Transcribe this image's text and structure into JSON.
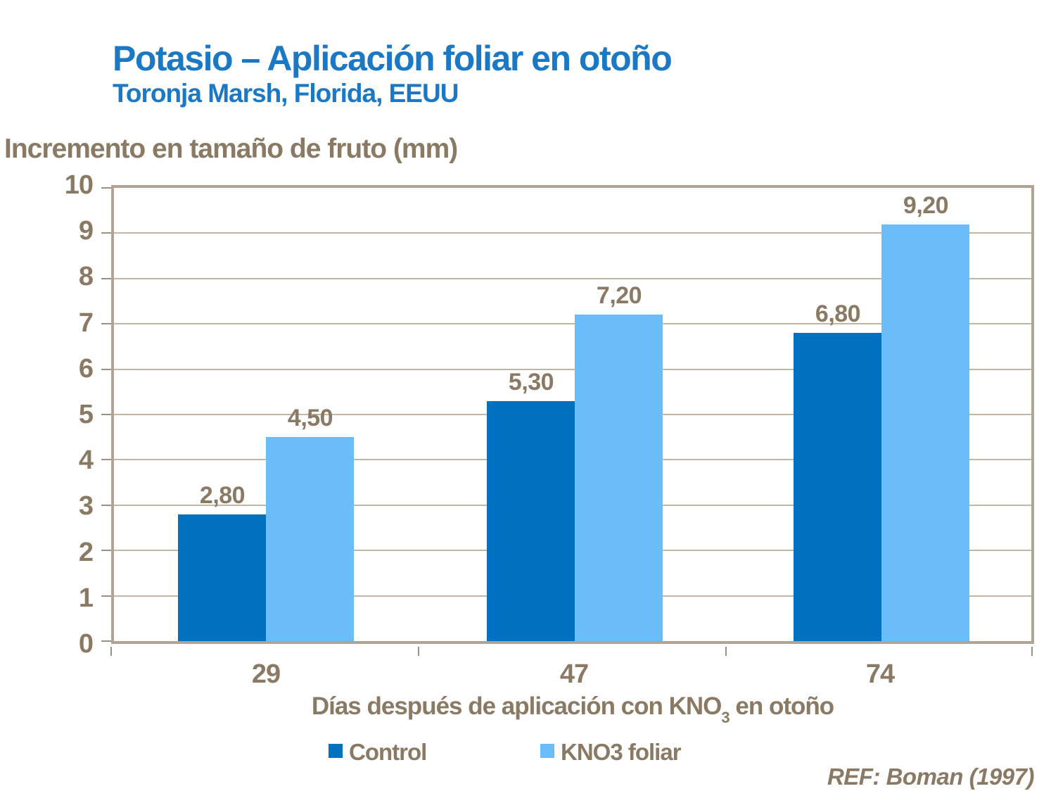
{
  "slide": {
    "title": "Potasio – Aplicación foliar en otoño",
    "subtitle": "Toronja Marsh, Florida, EEUU",
    "reference": "REF: Boman (1997)"
  },
  "chart_data": {
    "type": "bar",
    "title": "Potasio – Aplicación foliar en otoño",
    "subtitle": "Toronja Marsh, Florida, EEUU",
    "y_axis_title": "Incremento en tamaño de fruto (mm)",
    "x_axis_title_parts": {
      "prefix": "Días después de aplicación con KNO",
      "subscript": "3",
      "suffix": " en otoño"
    },
    "categories": [
      "29",
      "47",
      "74"
    ],
    "series": [
      {
        "name": "Control",
        "color": "#0071BE",
        "values": [
          2.8,
          5.3,
          6.8
        ],
        "labels": [
          "2,80",
          "5,30",
          "6,80"
        ]
      },
      {
        "name": "KNO3 foliar",
        "color": "#6BBDF9",
        "values": [
          4.5,
          7.2,
          9.2
        ],
        "labels": [
          "4,50",
          "7,20",
          "9,20"
        ]
      }
    ],
    "ylim": [
      0,
      10
    ],
    "y_ticks": [
      "10",
      "9",
      "8",
      "7",
      "6",
      "5",
      "4",
      "3",
      "2",
      "1",
      "0"
    ],
    "grid": true,
    "legend_position": "bottom",
    "colors": {
      "title_blue": "#1A78C4",
      "axis_text_brown": "#8A7A64",
      "plot_border_tan": "#B1A496",
      "gridline_tan": "#C2B6A7"
    }
  }
}
